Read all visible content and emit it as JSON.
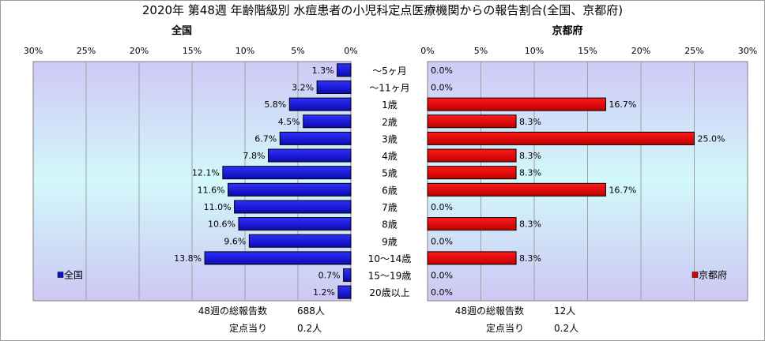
{
  "title": "2020年 第48週 年齢階級別 水痘患者の小児科定点医療機関からの報告割合(全国、京都府)",
  "chart_data": [
    {
      "type": "bar",
      "orientation": "horizontal",
      "title": "全国",
      "xlim": [
        0,
        30
      ],
      "ticks": [
        "30%",
        "25%",
        "20%",
        "15%",
        "10%",
        "5%",
        "0%"
      ],
      "axis_direction": "reversed",
      "categories": [
        "～5ヶ月",
        "～11ヶ月",
        "1歳",
        "2歳",
        "3歳",
        "4歳",
        "5歳",
        "6歳",
        "7歳",
        "8歳",
        "9歳",
        "10～14歳",
        "15～19歳",
        "20歳以上"
      ],
      "series": [
        {
          "name": "全国",
          "values": [
            1.3,
            3.2,
            5.8,
            4.5,
            6.7,
            7.8,
            12.1,
            11.6,
            11.0,
            10.6,
            9.6,
            13.8,
            0.7,
            1.2
          ],
          "labels": [
            "1.3%",
            "3.2%",
            "5.8%",
            "4.5%",
            "6.7%",
            "7.8%",
            "12.1%",
            "11.6%",
            "11.0%",
            "10.6%",
            "9.6%",
            "13.8%",
            "0.7%",
            "1.2%"
          ],
          "color": "#1010cc"
        }
      ],
      "legend": "left-bottom",
      "footer": [
        {
          "label": "48週の総報告数",
          "value": "688人"
        },
        {
          "label": "定点当り",
          "value": "0.2人"
        }
      ]
    },
    {
      "type": "bar",
      "orientation": "horizontal",
      "title": "京都府",
      "xlim": [
        0,
        30
      ],
      "ticks": [
        "0%",
        "5%",
        "10%",
        "15%",
        "20%",
        "25%",
        "30%"
      ],
      "categories": [
        "～5ヶ月",
        "～11ヶ月",
        "1歳",
        "2歳",
        "3歳",
        "4歳",
        "5歳",
        "6歳",
        "7歳",
        "8歳",
        "9歳",
        "10～14歳",
        "15～19歳",
        "20歳以上"
      ],
      "series": [
        {
          "name": "京都府",
          "values": [
            0.0,
            0.0,
            16.7,
            8.3,
            25.0,
            8.3,
            8.3,
            16.7,
            0.0,
            8.3,
            0.0,
            8.3,
            0.0,
            0.0
          ],
          "labels": [
            "0.0%",
            "0.0%",
            "16.7%",
            "8.3%",
            "25.0%",
            "8.3%",
            "8.3%",
            "16.7%",
            "0.0%",
            "8.3%",
            "0.0%",
            "8.3%",
            "0.0%",
            "0.0%"
          ],
          "color": "#dd0000"
        }
      ],
      "legend": "right-bottom",
      "footer": [
        {
          "label": "48週の総報告数",
          "value": "12人"
        },
        {
          "label": "定点当り",
          "value": "0.2人"
        }
      ]
    }
  ]
}
